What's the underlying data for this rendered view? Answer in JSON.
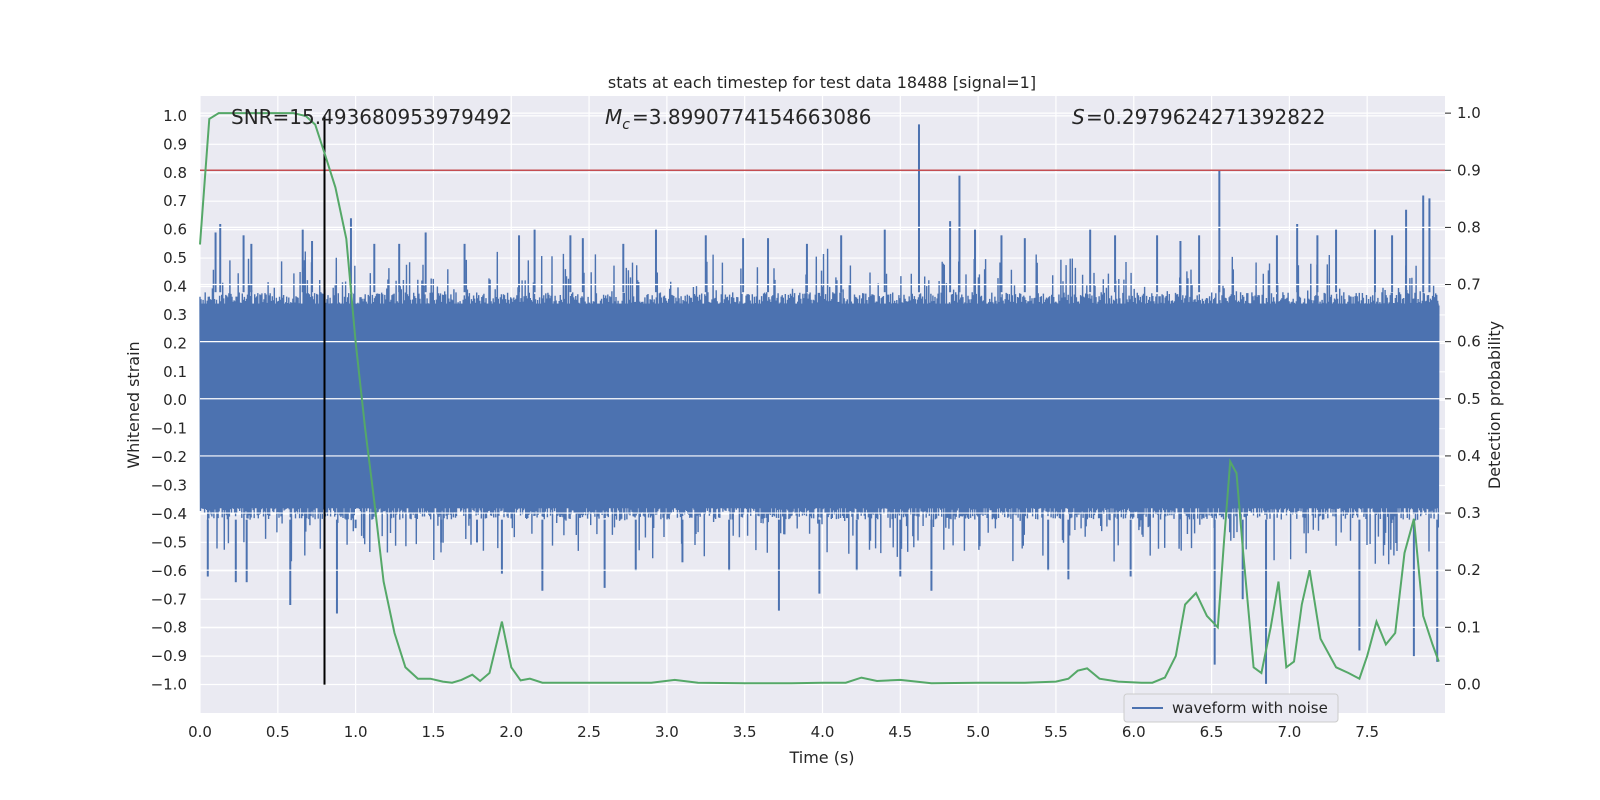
{
  "chart_data": {
    "type": "line",
    "title": "stats at each timestep for test data 18488 [signal=1]",
    "xlabel": "Time (s)",
    "ylabel_left": "Whitened strain",
    "ylabel_right": "Detection probability",
    "xlim": [
      0.0,
      8.0
    ],
    "ylim_left": [
      -1.1,
      1.07
    ],
    "ylim_right": [
      -0.05,
      1.03
    ],
    "x_ticks": [
      0.0,
      0.5,
      1.0,
      1.5,
      2.0,
      2.5,
      3.0,
      3.5,
      4.0,
      4.5,
      5.0,
      5.5,
      6.0,
      6.5,
      7.0,
      7.5
    ],
    "x_tick_labels": [
      "0.0",
      "0.5",
      "1.0",
      "1.5",
      "2.0",
      "2.5",
      "3.0",
      "3.5",
      "4.0",
      "4.5",
      "5.0",
      "5.5",
      "6.0",
      "6.5",
      "7.0",
      "7.5"
    ],
    "y_left_ticks": [
      1.0,
      0.9,
      0.8,
      0.7,
      0.6,
      0.5,
      0.4,
      0.3,
      0.2,
      0.1,
      0.0,
      -0.1,
      -0.2,
      -0.3,
      -0.4,
      -0.5,
      -0.6,
      -0.7,
      -0.8,
      -0.9,
      -1.0
    ],
    "y_left_tick_labels": [
      "1.0",
      "0.9",
      "0.8",
      "0.7",
      "0.6",
      "0.5",
      "0.4",
      "0.3",
      "0.2",
      "0.1",
      "0.0",
      "−0.1",
      "−0.2",
      "−0.3",
      "−0.4",
      "−0.5",
      "−0.6",
      "−0.7",
      "−0.8",
      "−0.9",
      "−1.0"
    ],
    "y_right_ticks": [
      1.0,
      0.9,
      0.8,
      0.7,
      0.6,
      0.5,
      0.4,
      0.3,
      0.2,
      0.1,
      0.0
    ],
    "y_right_tick_labels": [
      "1.0",
      "0.9",
      "0.8",
      "0.7",
      "0.6",
      "0.5",
      "0.4",
      "0.3",
      "0.2",
      "0.1",
      "0.0"
    ],
    "annotations": {
      "snr": "SNR=15.493680953979492",
      "mc": "=3.8990774154663086",
      "s": "=0.2979624271392822"
    },
    "legend": {
      "label": "waveform with noise",
      "placement": "lower-right"
    },
    "vertical_line_x": 0.8,
    "threshold_probability": 0.9,
    "waveform": {
      "name": "waveform with noise",
      "color": "#4c72b0",
      "band_low": -0.42,
      "band_high": 0.38,
      "spikes": [
        [
          0.05,
          -0.62
        ],
        [
          0.1,
          0.59
        ],
        [
          0.13,
          0.62
        ],
        [
          0.23,
          -0.64
        ],
        [
          0.28,
          0.58
        ],
        [
          0.3,
          -0.64
        ],
        [
          0.33,
          0.55
        ],
        [
          0.58,
          -0.72
        ],
        [
          0.66,
          0.6
        ],
        [
          0.72,
          0.56
        ],
        [
          0.88,
          -0.75
        ],
        [
          0.97,
          0.64
        ],
        [
          1.0,
          -0.45
        ],
        [
          1.12,
          0.55
        ],
        [
          1.28,
          0.55
        ],
        [
          1.45,
          0.59
        ],
        [
          1.55,
          -0.5
        ],
        [
          1.7,
          0.55
        ],
        [
          1.78,
          -0.5
        ],
        [
          1.94,
          -0.61
        ],
        [
          2.05,
          0.58
        ],
        [
          2.15,
          0.6
        ],
        [
          2.2,
          -0.67
        ],
        [
          2.38,
          0.58
        ],
        [
          2.46,
          0.57
        ],
        [
          2.6,
          -0.66
        ],
        [
          2.72,
          0.55
        ],
        [
          2.8,
          -0.6
        ],
        [
          2.93,
          0.6
        ],
        [
          3.1,
          -0.57
        ],
        [
          3.25,
          0.58
        ],
        [
          3.4,
          -0.6
        ],
        [
          3.49,
          0.57
        ],
        [
          3.65,
          0.57
        ],
        [
          3.72,
          -0.74
        ],
        [
          3.9,
          0.55
        ],
        [
          3.98,
          -0.68
        ],
        [
          4.12,
          0.58
        ],
        [
          4.22,
          -0.6
        ],
        [
          4.4,
          0.6
        ],
        [
          4.5,
          -0.62
        ],
        [
          4.62,
          0.97
        ],
        [
          4.7,
          -0.67
        ],
        [
          4.82,
          0.63
        ],
        [
          4.88,
          0.79
        ],
        [
          4.98,
          0.6
        ],
        [
          5.15,
          0.58
        ],
        [
          5.3,
          0.57
        ],
        [
          5.45,
          -0.6
        ],
        [
          5.58,
          -0.63
        ],
        [
          5.72,
          0.6
        ],
        [
          5.88,
          0.58
        ],
        [
          5.98,
          -0.62
        ],
        [
          6.15,
          0.58
        ],
        [
          6.3,
          0.56
        ],
        [
          6.42,
          0.58
        ],
        [
          6.52,
          -0.93
        ],
        [
          6.55,
          0.81
        ],
        [
          6.7,
          -0.7
        ],
        [
          6.85,
          -1.0
        ],
        [
          6.92,
          0.58
        ],
        [
          7.05,
          0.62
        ],
        [
          7.18,
          0.58
        ],
        [
          7.3,
          0.6
        ],
        [
          7.45,
          -0.88
        ],
        [
          7.55,
          0.6
        ],
        [
          7.66,
          0.58
        ],
        [
          7.75,
          0.67
        ],
        [
          7.8,
          -0.9
        ],
        [
          7.86,
          0.72
        ],
        [
          7.9,
          0.71
        ],
        [
          7.95,
          -0.92
        ]
      ]
    },
    "probability": {
      "name": "detection probability",
      "color": "#55a868",
      "x": [
        0.0,
        0.06,
        0.12,
        0.2,
        0.3,
        0.4,
        0.5,
        0.6,
        0.68,
        0.74,
        0.8,
        0.87,
        0.94,
        1.0,
        1.06,
        1.12,
        1.18,
        1.25,
        1.32,
        1.4,
        1.48,
        1.56,
        1.62,
        1.68,
        1.75,
        1.8,
        1.86,
        1.94,
        2.0,
        2.06,
        2.12,
        2.2,
        2.3,
        2.5,
        2.7,
        2.9,
        3.05,
        3.2,
        3.5,
        3.8,
        4.0,
        4.15,
        4.25,
        4.35,
        4.5,
        4.7,
        5.0,
        5.3,
        5.5,
        5.58,
        5.64,
        5.7,
        5.78,
        5.9,
        6.05,
        6.12,
        6.2,
        6.27,
        6.33,
        6.4,
        6.47,
        6.54,
        6.58,
        6.62,
        6.66,
        6.7,
        6.77,
        6.82,
        6.88,
        6.93,
        6.98,
        7.03,
        7.08,
        7.13,
        7.2,
        7.3,
        7.38,
        7.45,
        7.5,
        7.56,
        7.62,
        7.68,
        7.74,
        7.8,
        7.86,
        7.92,
        7.96
      ],
      "y": [
        0.77,
        0.99,
        1.0,
        1.0,
        1.0,
        1.0,
        1.0,
        1.0,
        0.995,
        0.98,
        0.93,
        0.87,
        0.78,
        0.6,
        0.45,
        0.32,
        0.18,
        0.09,
        0.03,
        0.01,
        0.01,
        0.005,
        0.003,
        0.008,
        0.017,
        0.006,
        0.02,
        0.11,
        0.03,
        0.007,
        0.01,
        0.003,
        0.003,
        0.003,
        0.003,
        0.003,
        0.008,
        0.003,
        0.002,
        0.002,
        0.003,
        0.003,
        0.012,
        0.006,
        0.008,
        0.002,
        0.003,
        0.003,
        0.005,
        0.01,
        0.024,
        0.028,
        0.01,
        0.005,
        0.003,
        0.003,
        0.012,
        0.05,
        0.14,
        0.16,
        0.12,
        0.1,
        0.25,
        0.39,
        0.37,
        0.24,
        0.03,
        0.02,
        0.1,
        0.18,
        0.03,
        0.04,
        0.14,
        0.2,
        0.08,
        0.03,
        0.02,
        0.01,
        0.05,
        0.11,
        0.07,
        0.09,
        0.23,
        0.29,
        0.12,
        0.07,
        0.04
      ]
    }
  }
}
